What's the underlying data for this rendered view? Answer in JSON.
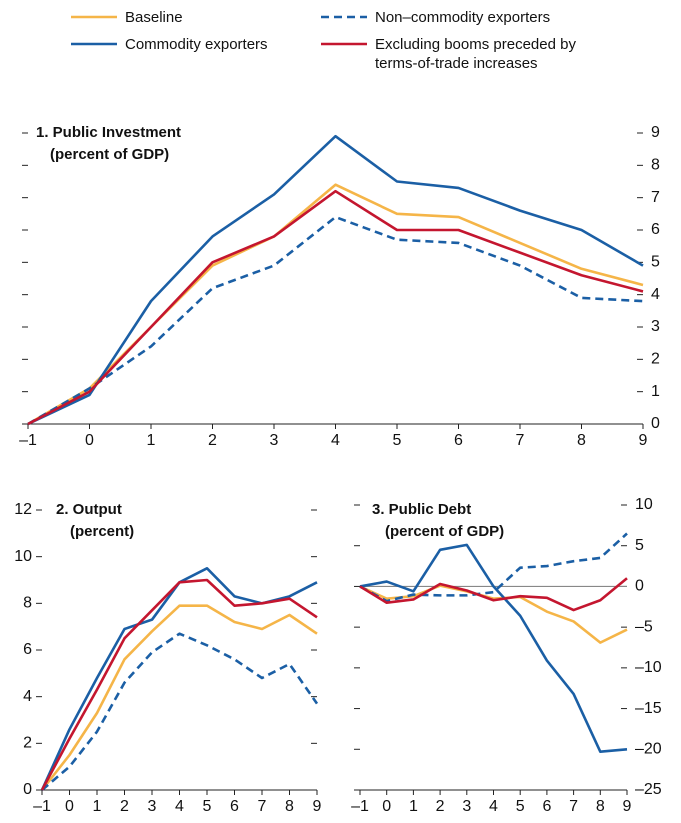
{
  "chart_data": [
    {
      "type": "line",
      "title": "1. Public Investment",
      "subtitle": "(percent of GDP)",
      "x": [
        -1,
        0,
        1,
        2,
        3,
        4,
        5,
        6,
        7,
        8,
        9
      ],
      "xlim": [
        -1,
        9
      ],
      "xticks": [
        {
          "value": -1,
          "label": "–1"
        },
        0,
        1,
        2,
        3,
        4,
        5,
        6,
        7,
        8,
        9
      ],
      "ylim": [
        0,
        9
      ],
      "yticks": [
        0,
        1,
        2,
        3,
        4,
        5,
        6,
        7,
        8,
        9
      ],
      "ytick_labels_side": "right",
      "series": [
        {
          "name": "Baseline",
          "color": "#f5b548",
          "dash": false,
          "values": [
            0,
            1.1,
            3.0,
            4.9,
            5.8,
            7.4,
            6.5,
            6.4,
            5.6,
            4.8,
            4.3
          ]
        },
        {
          "name": "Commodity exporters",
          "color": "#1b5fa5",
          "dash": false,
          "values": [
            0,
            0.9,
            3.8,
            5.8,
            7.1,
            8.9,
            7.5,
            7.3,
            6.6,
            6.0,
            4.9
          ]
        },
        {
          "name": "Non–commodity exporters",
          "color": "#1b5fa5",
          "dash": true,
          "values": [
            0,
            1.1,
            2.4,
            4.2,
            4.9,
            6.4,
            5.7,
            5.6,
            4.9,
            3.9,
            3.8
          ]
        },
        {
          "name": "Excluding booms preceded by terms-of-trade increases",
          "color": "#c4162f",
          "dash": false,
          "values": [
            0,
            1.0,
            3.0,
            5.0,
            5.8,
            7.2,
            6.0,
            6.0,
            5.3,
            4.6,
            4.1
          ]
        }
      ]
    },
    {
      "type": "line",
      "title": "2. Output",
      "subtitle": "(percent)",
      "x": [
        -1,
        0,
        1,
        2,
        3,
        4,
        5,
        6,
        7,
        8,
        9
      ],
      "xlim": [
        -1,
        9
      ],
      "xticks": [
        {
          "value": -1,
          "label": "–1"
        },
        0,
        1,
        2,
        3,
        4,
        5,
        6,
        7,
        8,
        9
      ],
      "ylim": [
        0,
        12
      ],
      "yticks": [
        0,
        2,
        4,
        6,
        8,
        10,
        12
      ],
      "ytick_labels_side": "left",
      "series": [
        {
          "color": "#f5b548",
          "dash": false,
          "values": [
            0,
            1.5,
            3.3,
            5.6,
            6.8,
            7.9,
            7.9,
            7.2,
            6.9,
            7.5,
            6.7
          ]
        },
        {
          "color": "#1b5fa5",
          "dash": false,
          "values": [
            0,
            2.6,
            4.8,
            6.9,
            7.3,
            8.9,
            9.5,
            8.3,
            8.0,
            8.3,
            8.9
          ]
        },
        {
          "color": "#1b5fa5",
          "dash": true,
          "values": [
            0,
            1.0,
            2.5,
            4.6,
            5.9,
            6.7,
            6.2,
            5.6,
            4.8,
            5.4,
            3.7
          ]
        },
        {
          "color": "#c4162f",
          "dash": false,
          "values": [
            0,
            2.2,
            4.3,
            6.5,
            7.7,
            8.9,
            9.0,
            7.9,
            8.0,
            8.2,
            7.4
          ]
        }
      ]
    },
    {
      "type": "line",
      "title": "3. Public Debt",
      "subtitle": "(percent of GDP)",
      "x": [
        -1,
        0,
        1,
        2,
        3,
        4,
        5,
        6,
        7,
        8,
        9
      ],
      "xlim": [
        -1,
        9
      ],
      "xticks": [
        {
          "value": -1,
          "label": "–1"
        },
        0,
        1,
        2,
        3,
        4,
        5,
        6,
        7,
        8,
        9
      ],
      "ylim": [
        -25,
        10
      ],
      "yticks": [
        {
          "value": -25,
          "label": "–25"
        },
        {
          "value": -20,
          "label": "–20"
        },
        {
          "value": -15,
          "label": "–15"
        },
        {
          "value": -10,
          "label": "–10"
        },
        {
          "value": -5,
          "label": "–5"
        },
        0,
        5,
        10
      ],
      "ytick_labels_side": "right",
      "zero_line": true,
      "series": [
        {
          "color": "#f5b548",
          "dash": false,
          "values": [
            0,
            -1.5,
            -1.2,
            0.1,
            -0.6,
            -1.5,
            -1.3,
            -3.1,
            -4.3,
            -6.9,
            -5.3
          ]
        },
        {
          "color": "#1b5fa5",
          "dash": false,
          "values": [
            0,
            0.6,
            -0.6,
            4.5,
            5.1,
            0,
            -3.6,
            -9.1,
            -13.2,
            -20.3,
            -20.0
          ]
        },
        {
          "color": "#1b5fa5",
          "dash": true,
          "values": [
            0,
            -1.8,
            -1.0,
            -1.1,
            -1.1,
            -0.7,
            2.3,
            2.5,
            3.1,
            3.5,
            6.5
          ]
        },
        {
          "color": "#c4162f",
          "dash": false,
          "values": [
            0,
            -2.0,
            -1.6,
            0.3,
            -0.5,
            -1.7,
            -1.2,
            -1.4,
            -2.9,
            -1.7,
            1.0
          ]
        }
      ]
    }
  ]
}
